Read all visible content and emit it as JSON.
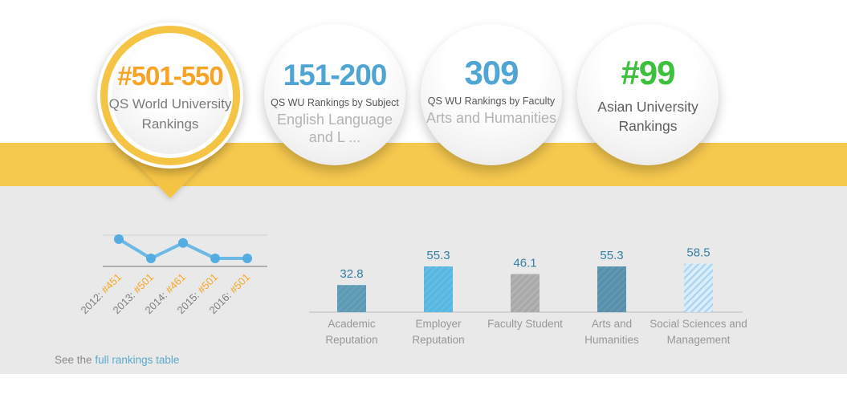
{
  "theme": {
    "band_color": "#f5c84e",
    "ring_color": "#f6c445",
    "panel_color": "#e9e9e9"
  },
  "header": {
    "badges": [
      {
        "value": "#501-550",
        "value_color": "#f7a426",
        "title": "QS World University Rankings",
        "selected": true
      },
      {
        "value": "151-200",
        "value_color": "#4ea5d3",
        "category": "QS WU Rankings by Subject",
        "title": "English Language and L ...",
        "selected": false
      },
      {
        "value": "309",
        "value_color": "#4fa5d3",
        "category": "QS WU Rankings by Faculty",
        "title": "Arts and Humanities",
        "selected": false
      },
      {
        "value": "#99",
        "value_color": "#3cc13c",
        "title": "Asian University Rankings",
        "selected": false
      }
    ]
  },
  "chart_data": [
    {
      "type": "line",
      "name": "rankings-history",
      "x": [
        "2012",
        "2013",
        "2014",
        "2015",
        "2016"
      ],
      "values": [
        451,
        501,
        461,
        501,
        501
      ],
      "tick_labels": [
        "2012: #451",
        "2013: #501",
        "2014: #461",
        "2015: #501",
        "2016: #501"
      ],
      "value_prefix": "#",
      "line_color": "#6cb9e6",
      "point_color": "#54ace0",
      "year_label_color": "#7d7d7d",
      "rank_label_color": "#f5a623",
      "grid_top_color": "#cfcfcf",
      "grid_bottom_color": "#9c9c9c",
      "layout_note": "lower (better) rank plotted higher; two horizontal gridlines; labels rotated 45deg"
    },
    {
      "type": "bar",
      "name": "indicator-scores",
      "categories": [
        "Academic Reputation",
        "Employer Reputation",
        "Faculty Student",
        "Arts and Humanities",
        "Social Sciences and Management"
      ],
      "values": [
        32.8,
        55.3,
        46.1,
        55.3,
        58.5
      ],
      "value_color": "#337ea6",
      "label_color": "#979797",
      "axis_color": "#c9c9c9",
      "ylim": [
        0,
        100
      ],
      "bars": [
        {
          "label_lines": [
            "Academic",
            "Reputation"
          ],
          "value": 32.8,
          "fill": "#5e9ab4",
          "stripe": "#69a3bb"
        },
        {
          "label_lines": [
            "Employer",
            "Reputation"
          ],
          "value": 55.3,
          "fill": "#58b7e0",
          "stripe": "#66bee4"
        },
        {
          "label_lines": [
            "Faculty Student"
          ],
          "value": 46.1,
          "fill": "#a9a9a9",
          "stripe": "#b5b5b5"
        },
        {
          "label_lines": [
            "Arts and",
            "Humanities"
          ],
          "value": 55.3,
          "fill": "#5890ab",
          "stripe": "#639ab3"
        },
        {
          "label_lines": [
            "Social Sciences and",
            "Management"
          ],
          "value": 58.5,
          "fill": "#daedfb",
          "stripe": "#abd3ef"
        }
      ]
    }
  ],
  "footer": {
    "prefix": "See the",
    "link_label": "full rankings table"
  }
}
